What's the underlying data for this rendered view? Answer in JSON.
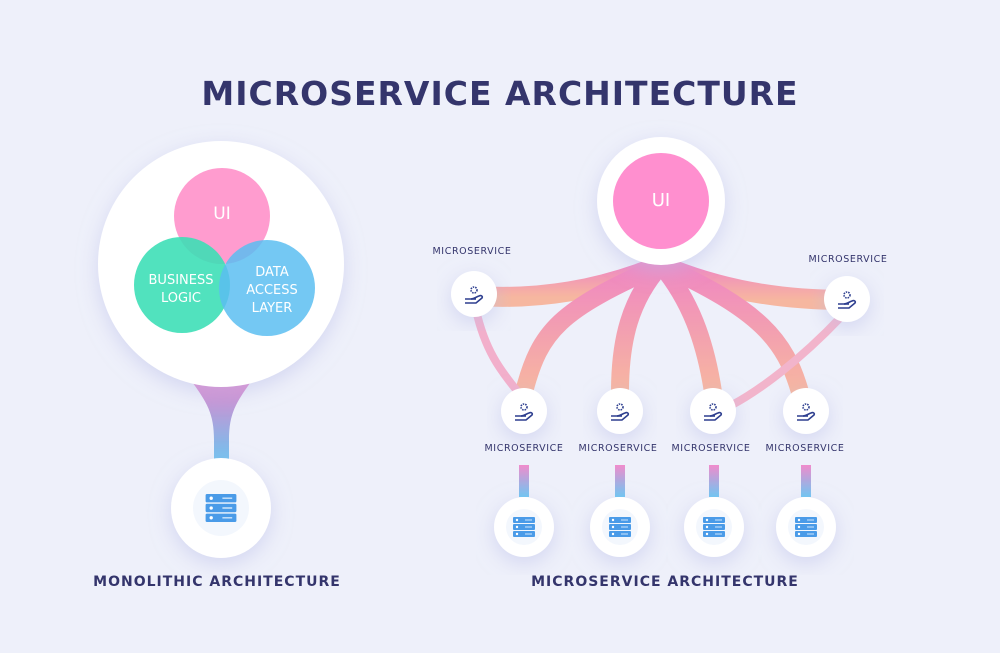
{
  "title": "MICROSERVICE ARCHITECTURE",
  "monolith": {
    "ui": "UI",
    "business": [
      "BUSINESS",
      "LOGIC"
    ],
    "data": [
      "DATA",
      "ACCESS",
      "LAYER"
    ],
    "caption": "MONOLITHIC ARCHITECTURE",
    "icon": "server-icon"
  },
  "micro": {
    "ui": "UI",
    "service_label": "MICROSERVICE",
    "caption": "MICROSERVICE ARCHITECTURE",
    "service_icon": "hand-gear-icon",
    "db_icon": "server-icon"
  },
  "colors": {
    "ui": "#ff8fcf",
    "business": "#3fdcb6",
    "data": "#5bbff0",
    "text": "#34356c",
    "server": "#4a9be8"
  }
}
